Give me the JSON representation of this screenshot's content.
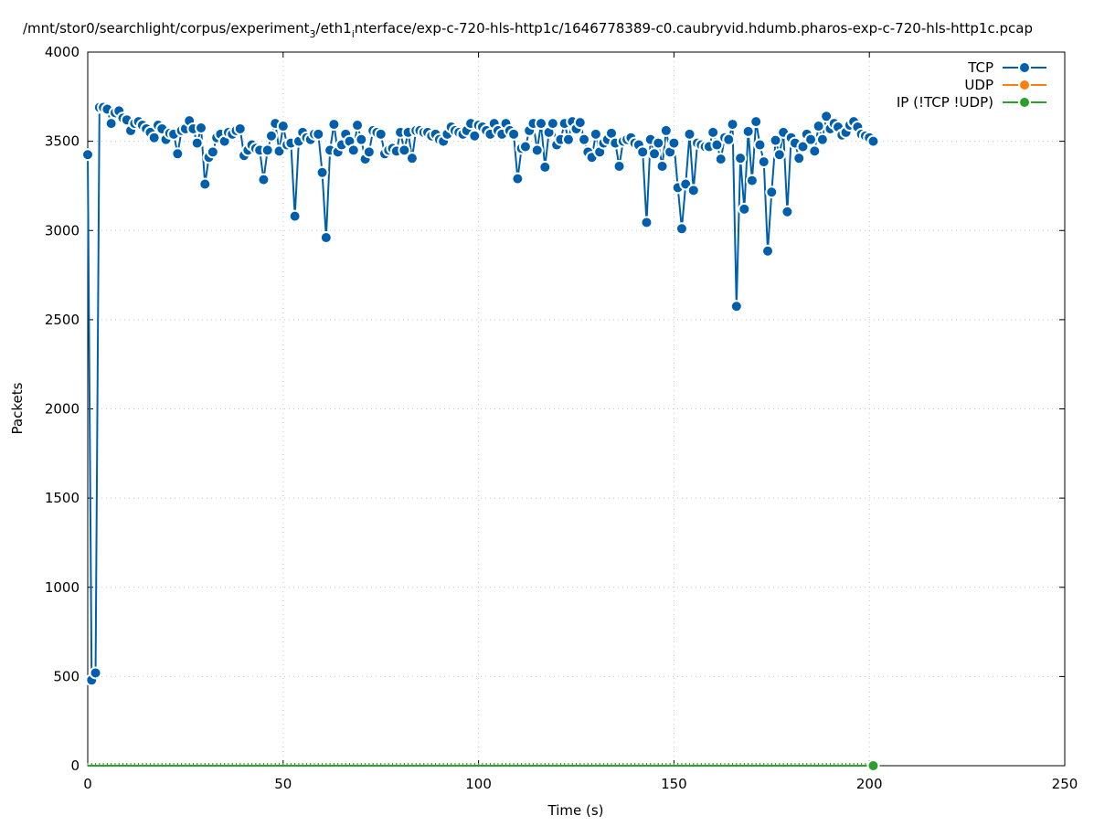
{
  "chart_data": {
    "type": "line",
    "title": "/mnt/stor0/searchlight/corpus/experiment_3/eth1_interface/exp-c-720-hls-http1c/1646778389-c0.caubryvid.hdumb.pharos-exp-c-720-hls-http1c.pcap",
    "title_parts": [
      "/mnt/stor0/searchlight/corpus/experiment",
      "3",
      "/eth1",
      "i",
      "nterface/exp-c-720-hls-http1c/1646778389-c0.caubryvid.hdumb.pharos-exp-c-720-hls-http1c.pcap"
    ],
    "xlabel": "Time (s)",
    "ylabel": "Packets",
    "xlim": [
      0,
      250
    ],
    "ylim": [
      0,
      4000
    ],
    "xticks": [
      0,
      50,
      100,
      150,
      200,
      250
    ],
    "yticks": [
      0,
      500,
      1000,
      1500,
      2000,
      2500,
      3000,
      3500,
      4000
    ],
    "grid": true,
    "legend_position": "top-right",
    "series": [
      {
        "name": "TCP",
        "color": "#005fad",
        "x_start": 0,
        "x_step": 1,
        "values": [
          3425,
          480,
          520,
          3690,
          3690,
          3680,
          3600,
          3660,
          3670,
          3630,
          3620,
          3560,
          3600,
          3610,
          3590,
          3570,
          3550,
          3520,
          3590,
          3570,
          3510,
          3545,
          3540,
          3430,
          3560,
          3570,
          3615,
          3570,
          3490,
          3575,
          3260,
          3410,
          3440,
          3520,
          3540,
          3500,
          3550,
          3540,
          3560,
          3570,
          3420,
          3450,
          3480,
          3460,
          3450,
          3285,
          3450,
          3530,
          3600,
          3445,
          3585,
          3480,
          3490,
          3080,
          3500,
          3550,
          3520,
          3510,
          3540,
          3540,
          3325,
          2960,
          3450,
          3595,
          3440,
          3480,
          3540,
          3500,
          3450,
          3590,
          3510,
          3400,
          3440,
          3560,
          3550,
          3540,
          3430,
          3450,
          3460,
          3445,
          3550,
          3450,
          3550,
          3405,
          3560,
          3560,
          3550,
          3550,
          3530,
          3540,
          3510,
          3500,
          3540,
          3580,
          3560,
          3550,
          3540,
          3560,
          3600,
          3530,
          3590,
          3580,
          3560,
          3540,
          3600,
          3560,
          3540,
          3600,
          3560,
          3540,
          3290,
          3460,
          3470,
          3560,
          3600,
          3450,
          3600,
          3355,
          3550,
          3600,
          3480,
          3510,
          3600,
          3510,
          3610,
          3570,
          3605,
          3510,
          3440,
          3410,
          3540,
          3440,
          3490,
          3510,
          3545,
          3490,
          3360,
          3500,
          3510,
          3520,
          3490,
          3480,
          3440,
          3045,
          3510,
          3430,
          3490,
          3360,
          3560,
          3440,
          3490,
          3240,
          3010,
          3260,
          3540,
          3225,
          3490,
          3480,
          3470,
          3470,
          3550,
          3480,
          3400,
          3520,
          3510,
          3595,
          2575,
          3405,
          3120,
          3555,
          3280,
          3610,
          3480,
          3385,
          2885,
          3215,
          3505,
          3425,
          3550,
          3105,
          3520,
          3490,
          3405,
          3470,
          3540,
          3510,
          3445,
          3585,
          3510,
          3640,
          3570,
          3600,
          3580,
          3535,
          3550,
          3590,
          3610,
          3580,
          3540,
          3530,
          3520,
          3500
        ]
      },
      {
        "name": "UDP",
        "color": "#ff7f0e",
        "x_start": 0,
        "x_step": 1,
        "values": "all-zero",
        "count": 202
      },
      {
        "name": "IP (!TCP  !UDP)",
        "color": "#2ca02c",
        "x_start": 0,
        "x_step": 1,
        "values": "all-zero",
        "count": 202
      }
    ]
  }
}
